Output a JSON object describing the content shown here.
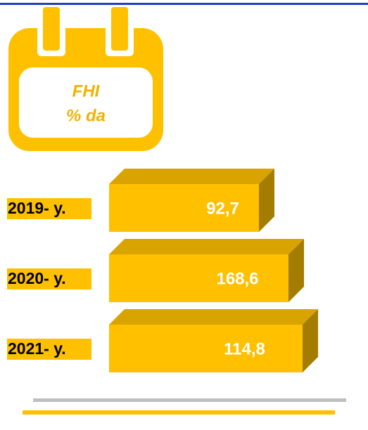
{
  "icon": {
    "line1": "FHI",
    "line2": "% da"
  },
  "rows": [
    {
      "label": "2019- y.",
      "value": "92,7"
    },
    {
      "label": "2020- y.",
      "value": "168,6"
    },
    {
      "label": "2021- y.",
      "value": "114,8"
    }
  ]
}
